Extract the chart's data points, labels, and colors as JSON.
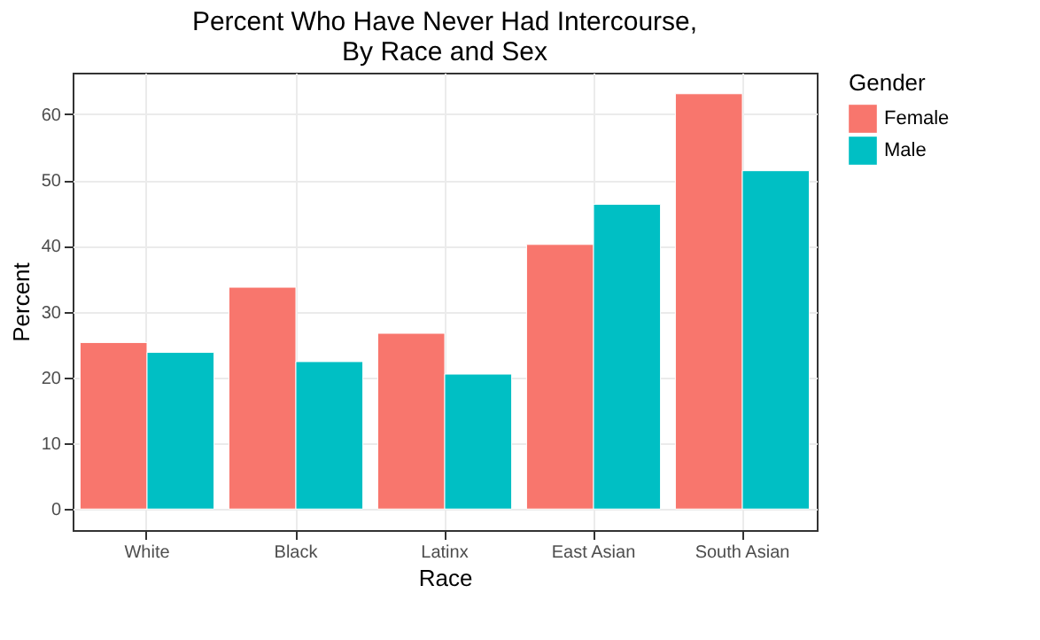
{
  "chart_data": {
    "type": "bar",
    "title": "Percent Who Have Never Had Intercourse,\nBy Race and Sex",
    "xlabel": "Race",
    "ylabel": "Percent",
    "legend_title": "Gender",
    "categories": [
      "White",
      "Black",
      "Latinx",
      "East Asian",
      "South Asian"
    ],
    "series": [
      {
        "name": "Female",
        "color": "#f8766d",
        "values": [
          25.3,
          33.7,
          26.7,
          40.2,
          63.1
        ]
      },
      {
        "name": "Male",
        "color": "#00bfc4",
        "values": [
          23.8,
          22.4,
          20.5,
          46.3,
          51.4
        ]
      }
    ],
    "ylim": [
      -3.2,
      66.3
    ],
    "yticks": [
      0,
      10,
      20,
      30,
      40,
      50,
      60
    ],
    "grid": true,
    "legend": "right"
  }
}
